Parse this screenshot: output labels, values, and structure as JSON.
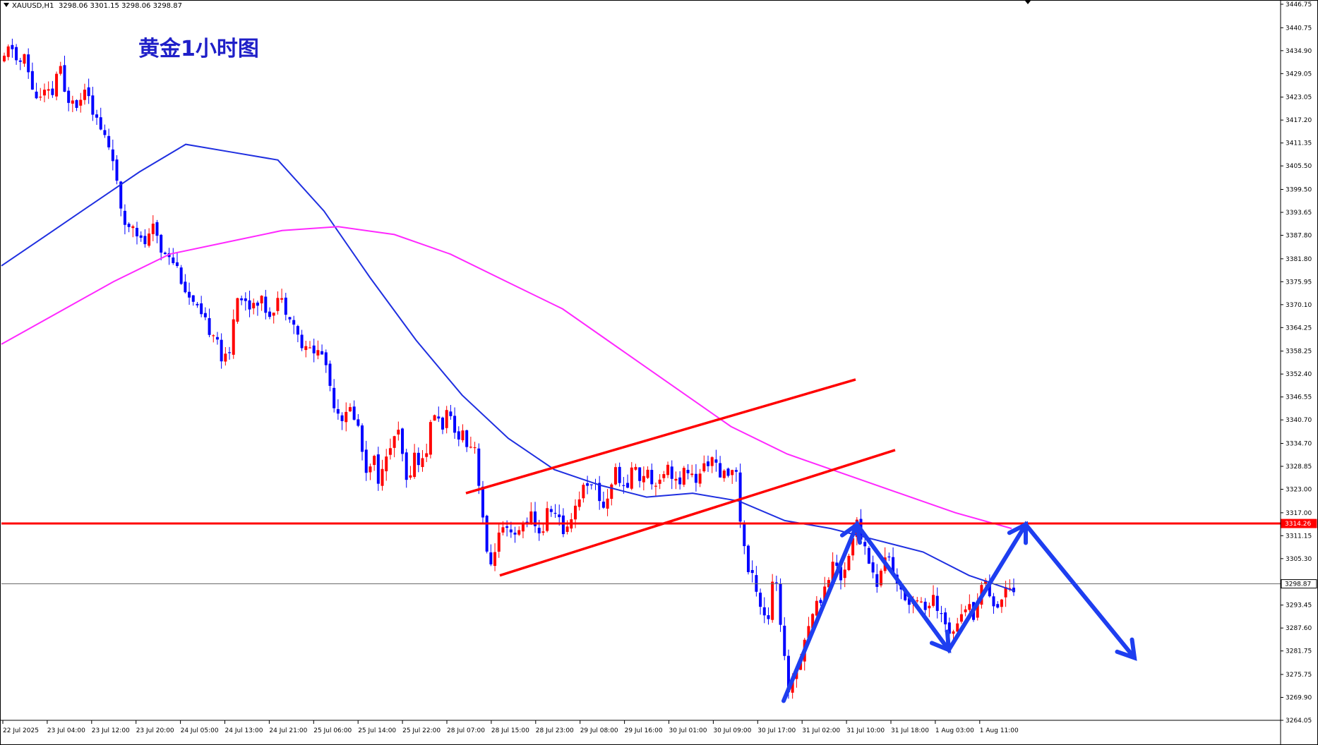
{
  "header": {
    "symbol_info": "XAUUSD,H1",
    "ohlc": "3298.06 3301.15 3298.06 3298.87"
  },
  "chart_title": "黄金1小时图",
  "colors": {
    "bull": "#ff0000",
    "bear": "#0000ff",
    "ma_fast": "#1f2fe0",
    "ma_slow": "#ff28ff",
    "trend_lines": "#ff0000",
    "support_line": "#ff0000",
    "projection": "#1e3ef0",
    "price_tag_bg": "#ff0000",
    "current_tag_bg": "#ffffff"
  },
  "chart_data": {
    "type": "candlestick",
    "symbol": "XAUUSD",
    "timeframe": "H1",
    "ylim": [
      3264.05,
      3446.75
    ],
    "y_ticks": [
      "3446.75",
      "3440.75",
      "3434.90",
      "3429.05",
      "3423.05",
      "3417.20",
      "3411.35",
      "3405.50",
      "3399.50",
      "3393.65",
      "3387.80",
      "3381.80",
      "3375.95",
      "3370.10",
      "3364.25",
      "3358.25",
      "3352.40",
      "3346.55",
      "3340.70",
      "3334.70",
      "3328.85",
      "3323.00",
      "3317.00",
      "3311.15",
      "3305.30",
      "3299.30",
      "3293.45",
      "3287.60",
      "3281.75",
      "3275.75",
      "3269.90",
      "3264.05"
    ],
    "x_ticks": [
      "22 Jul 2025",
      "23 Jul 04:00",
      "23 Jul 12:00",
      "23 Jul 20:00",
      "24 Jul 05:00",
      "24 Jul 13:00",
      "24 Jul 21:00",
      "25 Jul 06:00",
      "25 Jul 14:00",
      "25 Jul 22:00",
      "28 Jul 07:00",
      "28 Jul 15:00",
      "28 Jul 23:00",
      "29 Jul 08:00",
      "29 Jul 16:00",
      "30 Jul 01:00",
      "30 Jul 09:00",
      "30 Jul 17:00",
      "31 Jul 02:00",
      "31 Jul 10:00",
      "31 Jul 18:00",
      "1 Aug 03:00",
      "1 Aug 11:00"
    ],
    "horizontal_level": {
      "value": 3314.26,
      "label": "3314.26"
    },
    "current_price": {
      "value": 3298.87,
      "label": "3298.87"
    },
    "path_points": [
      3432,
      3437,
      3431,
      3433,
      3426,
      3422,
      3424,
      3423,
      3432,
      3422,
      3424,
      3421,
      3428,
      3420,
      3415,
      3412,
      3408,
      3393,
      3390,
      3392,
      3386,
      3386,
      3390,
      3384,
      3384,
      3381,
      3377,
      3372,
      3369,
      3366,
      3364,
      3364,
      3355,
      3357,
      3374,
      3371,
      3370,
      3372,
      3370,
      3368,
      3372,
      3370,
      3368,
      3362,
      3358,
      3359,
      3358,
      3357,
      3347,
      3343,
      3341,
      3344,
      3338,
      3328,
      3332,
      3325,
      3330,
      3337,
      3336,
      3324,
      3332,
      3329,
      3334,
      3343,
      3339,
      3342,
      3337,
      3338,
      3335,
      3334,
      3319,
      3301,
      3309,
      3312,
      3311,
      3310,
      3314,
      3317,
      3312,
      3313,
      3319,
      3316,
      3312,
      3316,
      3320,
      3324,
      3326,
      3322,
      3318,
      3325,
      3328,
      3321,
      3329,
      3326,
      3328,
      3325,
      3326,
      3329,
      3327,
      3323,
      3329,
      3325,
      3326,
      3331,
      3330,
      3325,
      3327,
      3331,
      3314,
      3302,
      3300,
      3293,
      3290,
      3303,
      3283,
      3272,
      3277,
      3283,
      3289,
      3293,
      3297,
      3302,
      3304,
      3300,
      3309,
      3314,
      3309,
      3304,
      3298,
      3306,
      3305,
      3297,
      3296,
      3294,
      3297,
      3292,
      3295,
      3291,
      3288,
      3287,
      3292,
      3294,
      3291,
      3297,
      3300,
      3294,
      3293,
      3300,
      3298
    ],
    "series": [
      {
        "name": "MA fast",
        "values": [
          3380,
          3388,
          3396,
          3404,
          3411,
          3409,
          3407,
          3394,
          3377,
          3361,
          3347,
          3336,
          3328,
          3324,
          3321,
          3322,
          3320,
          3315,
          3313,
          3310,
          3307,
          3301,
          3297
        ]
      },
      {
        "name": "MA slow",
        "values": [
          3360,
          3368,
          3376,
          3383,
          3386,
          3389,
          3390,
          3388,
          3383,
          3376,
          3369,
          3359,
          3349,
          3339,
          3332,
          3327,
          3322,
          3317,
          3313
        ]
      }
    ],
    "annotations": [
      {
        "kind": "channel",
        "label": "rising channel",
        "lines": [
          [
            3322,
            3351
          ],
          [
            3301,
            3333
          ]
        ]
      },
      {
        "kind": "projection",
        "label": "zigzag forecast",
        "points": [
          3269,
          3314,
          3282,
          3314,
          3280
        ]
      }
    ]
  }
}
